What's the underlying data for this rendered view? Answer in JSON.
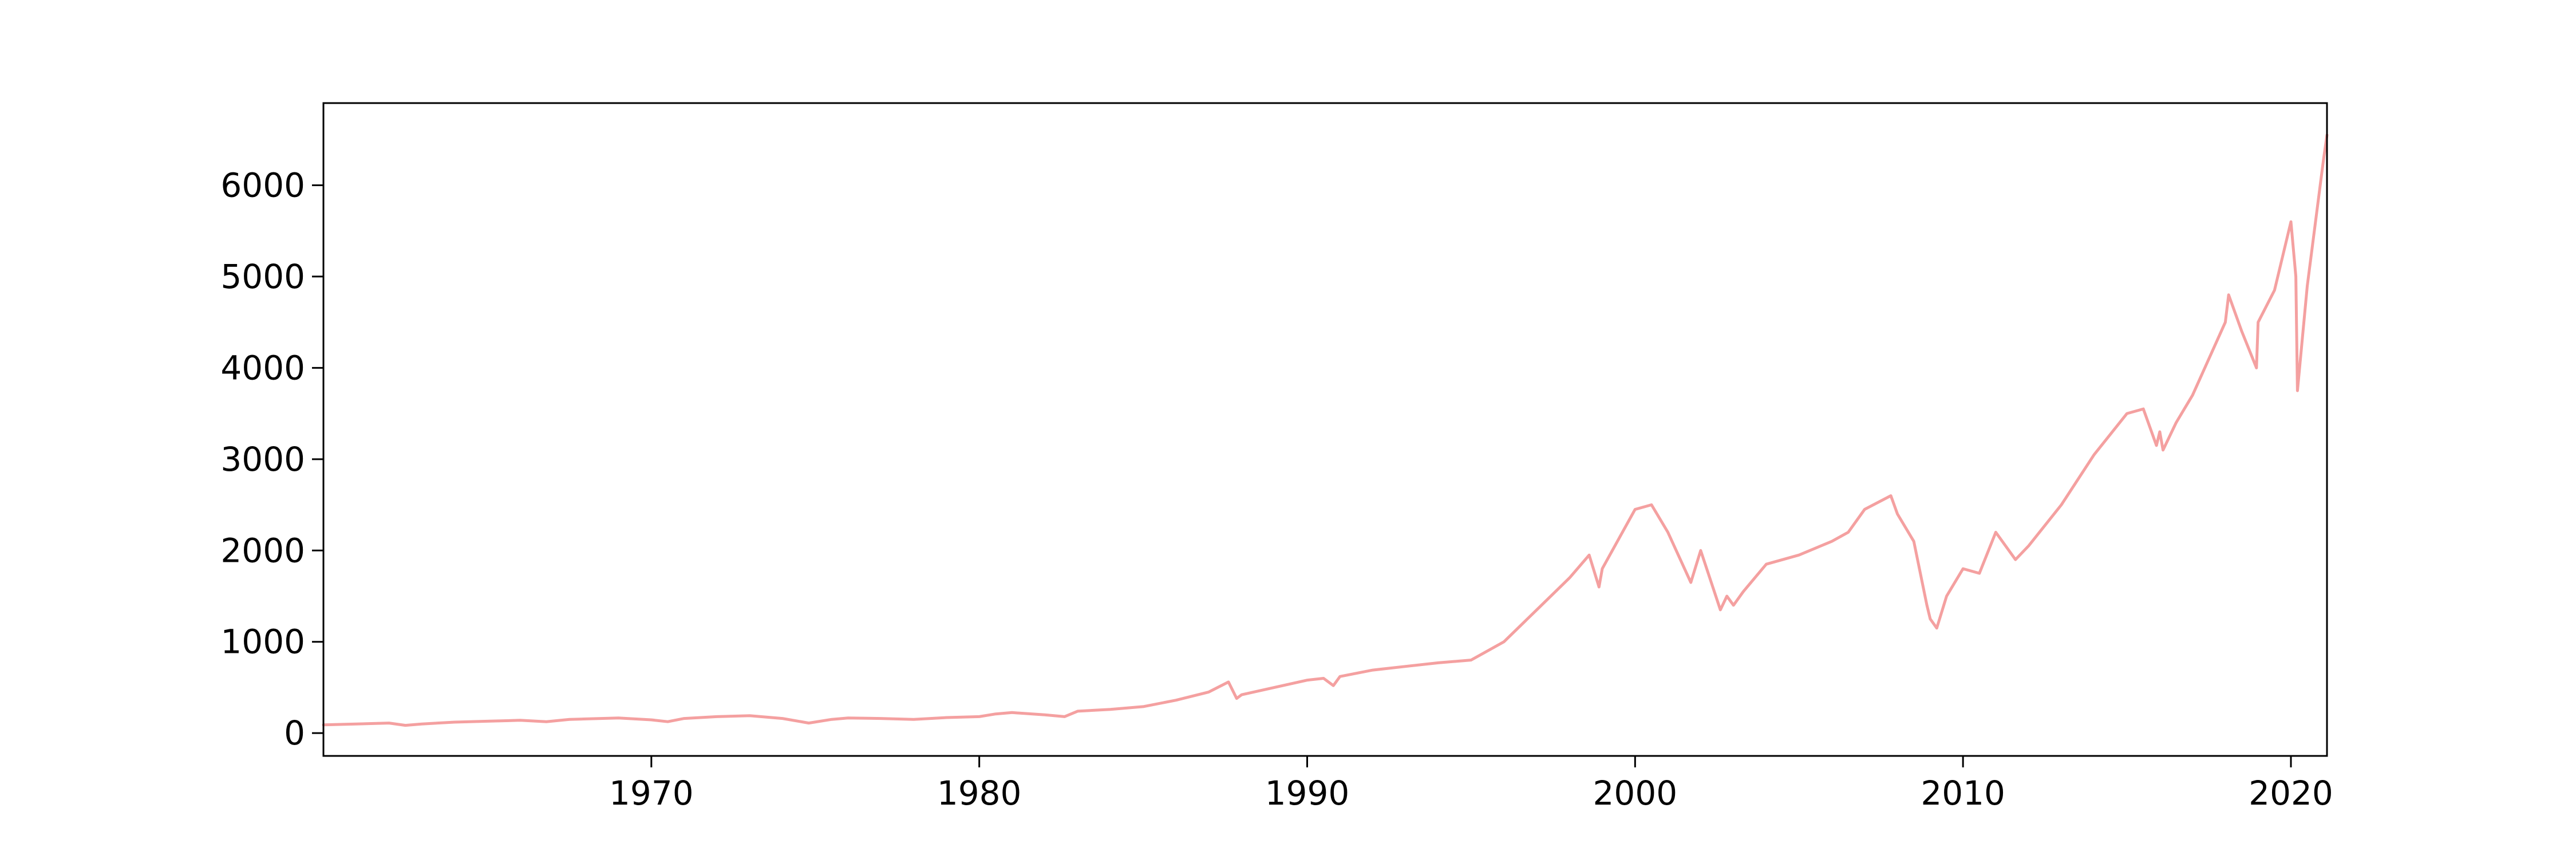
{
  "chart_data": {
    "type": "line",
    "title": "",
    "xlabel": "",
    "ylabel": "",
    "xlim": [
      1960.0,
      2021.1
    ],
    "ylim": [
      -250,
      6900
    ],
    "grid": false,
    "legend": "none",
    "x_ticks": [
      1970,
      1980,
      1990,
      2000,
      2010,
      2020
    ],
    "y_ticks": [
      0,
      1000,
      2000,
      3000,
      4000,
      5000,
      6000
    ],
    "x_tick_labels": [
      "1970",
      "1980",
      "1990",
      "2000",
      "2010",
      "2020"
    ],
    "y_tick_labels": [
      "0",
      "1000",
      "2000",
      "3000",
      "4000",
      "5000",
      "6000"
    ],
    "series": [
      {
        "color": "#f4a0a0",
        "x": [
          1960.0,
          1961.0,
          1962.0,
          1962.5,
          1963.0,
          1964.0,
          1965.0,
          1966.0,
          1966.8,
          1967.5,
          1968.0,
          1969.0,
          1970.0,
          1970.5,
          1971.0,
          1972.0,
          1973.0,
          1974.0,
          1974.8,
          1975.5,
          1976.0,
          1977.0,
          1978.0,
          1979.0,
          1980.0,
          1980.5,
          1981.0,
          1982.0,
          1982.6,
          1983.0,
          1984.0,
          1985.0,
          1986.0,
          1987.0,
          1987.6,
          1987.85,
          1988.0,
          1989.0,
          1990.0,
          1990.5,
          1990.8,
          1991.0,
          1992.0,
          1993.0,
          1994.0,
          1995.0,
          1996.0,
          1997.0,
          1998.0,
          1998.6,
          1998.9,
          1999.0,
          2000.0,
          2000.5,
          2001.0,
          2001.7,
          2002.0,
          2002.6,
          2002.8,
          2003.0,
          2003.3,
          2004.0,
          2005.0,
          2006.0,
          2006.5,
          2007.0,
          2007.8,
          2008.0,
          2008.5,
          2008.9,
          2009.0,
          2009.2,
          2009.5,
          2010.0,
          2010.5,
          2011.0,
          2011.6,
          2012.0,
          2013.0,
          2014.0,
          2015.0,
          2015.5,
          2015.9,
          2016.0,
          2016.1,
          2016.5,
          2017.0,
          2018.0,
          2018.1,
          2018.5,
          2018.95,
          2019.0,
          2019.5,
          2020.0,
          2020.15,
          2020.2,
          2020.5,
          2021.0,
          2021.1
        ],
        "y": [
          90,
          100,
          110,
          85,
          100,
          120,
          130,
          140,
          125,
          150,
          155,
          165,
          145,
          125,
          160,
          180,
          190,
          160,
          110,
          150,
          165,
          160,
          150,
          170,
          180,
          210,
          225,
          200,
          180,
          240,
          260,
          290,
          360,
          450,
          560,
          380,
          420,
          500,
          580,
          600,
          520,
          620,
          690,
          730,
          770,
          800,
          1000,
          1350,
          1700,
          1950,
          1600,
          1800,
          2450,
          2500,
          2200,
          1650,
          2000,
          1350,
          1500,
          1400,
          1550,
          1850,
          1950,
          2100,
          2200,
          2450,
          2600,
          2400,
          2100,
          1400,
          1250,
          1150,
          1500,
          1800,
          1750,
          2200,
          1900,
          2050,
          2500,
          3050,
          3500,
          3550,
          3150,
          3300,
          3100,
          3400,
          3700,
          4500,
          4800,
          4400,
          4000,
          4500,
          4850,
          5600,
          5000,
          3750,
          4900,
          6300,
          6550
        ]
      }
    ]
  }
}
